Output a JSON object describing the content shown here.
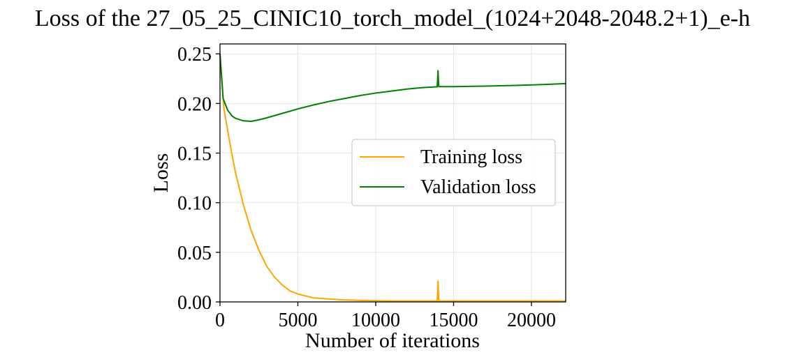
{
  "chart_data": {
    "type": "line",
    "title": "Loss of the 27_05_25_CINIC10_torch_model_(1024+2048-2048.2+1)_e-h",
    "xlabel": "Number of iterations",
    "ylabel": "Loss",
    "xlim": [
      0,
      22200
    ],
    "ylim": [
      0,
      0.26
    ],
    "x_ticks": [
      0,
      5000,
      10000,
      15000,
      20000
    ],
    "y_ticks": [
      0.0,
      0.05,
      0.1,
      0.15,
      0.2,
      0.25
    ],
    "x_tick_labels": [
      "0",
      "5000",
      "10000",
      "15000",
      "20000"
    ],
    "y_tick_labels": [
      "0.00",
      "0.05",
      "0.10",
      "0.15",
      "0.20",
      "0.25"
    ],
    "grid": true,
    "legend_position": "center-right",
    "series": [
      {
        "name": "Training loss",
        "color": "#ffa500",
        "x": [
          0,
          250,
          500,
          750,
          1000,
          1500,
          2000,
          2500,
          3000,
          3500,
          4000,
          4500,
          5000,
          5500,
          6000,
          7000,
          8000,
          9000,
          10000,
          11000,
          12000,
          13000,
          13950,
          14000,
          14050,
          15000,
          16000,
          17000,
          18000,
          19000,
          20000,
          21000,
          22200
        ],
        "values": [
          0.25,
          0.195,
          0.172,
          0.15,
          0.13,
          0.098,
          0.072,
          0.052,
          0.036,
          0.025,
          0.017,
          0.011,
          0.008,
          0.006,
          0.004,
          0.003,
          0.002,
          0.0015,
          0.0012,
          0.001,
          0.001,
          0.001,
          0.001,
          0.021,
          0.001,
          0.001,
          0.001,
          0.001,
          0.001,
          0.001,
          0.001,
          0.001,
          0.001
        ]
      },
      {
        "name": "Validation loss",
        "color": "#008000",
        "x": [
          0,
          200,
          500,
          800,
          1000,
          1500,
          2000,
          2500,
          3000,
          4000,
          5000,
          6000,
          7000,
          8000,
          9000,
          10000,
          11000,
          12000,
          13000,
          13950,
          14000,
          14050,
          15000,
          16000,
          17000,
          18000,
          19000,
          20000,
          21000,
          22200
        ],
        "values": [
          0.25,
          0.205,
          0.193,
          0.187,
          0.185,
          0.1825,
          0.182,
          0.1835,
          0.1855,
          0.19,
          0.1945,
          0.1985,
          0.202,
          0.205,
          0.208,
          0.2105,
          0.2125,
          0.2145,
          0.216,
          0.2168,
          0.233,
          0.217,
          0.217,
          0.2172,
          0.2175,
          0.2178,
          0.2182,
          0.2187,
          0.2192,
          0.22
        ]
      }
    ]
  }
}
